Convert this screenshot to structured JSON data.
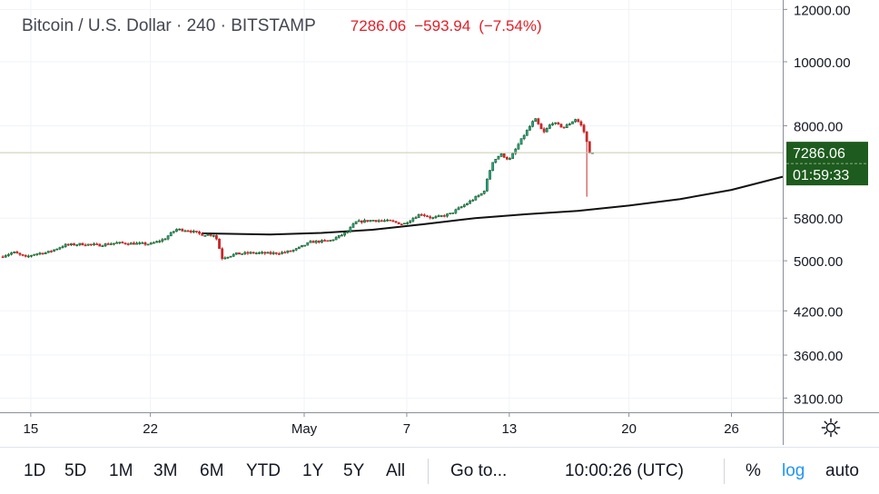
{
  "header": {
    "symbol": "Bitcoin / U.S. Dollar · 240 · BITSTAMP",
    "last": "7286.06",
    "change": "−593.94",
    "change_pct": "(−7.54%)"
  },
  "colors": {
    "up": "#26a69a",
    "up_dark": "#1b5e20",
    "down": "#c62828",
    "ma": "#111111",
    "price_label_bg": "#1e5b1e",
    "grid": "#f0f3fa"
  },
  "price_label": {
    "price": "7286.06",
    "countdown": "01:59:33"
  },
  "toolbar": {
    "ranges": [
      "1D",
      "5D",
      "1M",
      "3M",
      "6M",
      "YTD",
      "1Y",
      "5Y",
      "All"
    ],
    "goto": "Go to...",
    "clock": "10:00:26 (UTC)",
    "percent": "%",
    "log": "log",
    "auto": "auto"
  },
  "chart_data": {
    "type": "candlestick",
    "title": "Bitcoin / U.S. Dollar · 240 · BITSTAMP",
    "interval": "240",
    "scale": "log",
    "grid": true,
    "ylim": [
      2950,
      12400
    ],
    "y_ticks": [
      "12000.00",
      "10000.00",
      "8000.00",
      "5800.00",
      "5000.00",
      "4200.00",
      "3600.00",
      "3100.00"
    ],
    "y_tick_values": [
      12000,
      10000,
      8000,
      5800,
      5000,
      4200,
      3600,
      3100
    ],
    "x_ticks": [
      "15",
      "22",
      "May",
      "7",
      "13",
      "20",
      "26"
    ],
    "x_tick_days": [
      15,
      22,
      31,
      37,
      43,
      50,
      56
    ],
    "x_range_days": [
      13.2,
      59
    ],
    "last_price": 7286.06,
    "price_path": [
      [
        13.2,
        5070
      ],
      [
        14.0,
        5150
      ],
      [
        14.7,
        5060
      ],
      [
        15.2,
        5120
      ],
      [
        16.0,
        5150
      ],
      [
        17.0,
        5280
      ],
      [
        18.0,
        5300
      ],
      [
        19.0,
        5280
      ],
      [
        20.0,
        5320
      ],
      [
        21.0,
        5310
      ],
      [
        22.0,
        5300
      ],
      [
        22.8,
        5390
      ],
      [
        23.5,
        5580
      ],
      [
        24.2,
        5560
      ],
      [
        25.0,
        5480
      ],
      [
        25.8,
        5470
      ],
      [
        26.2,
        5050
      ],
      [
        27.0,
        5120
      ],
      [
        28.0,
        5140
      ],
      [
        29.0,
        5130
      ],
      [
        29.9,
        5150
      ],
      [
        30.5,
        5200
      ],
      [
        31.4,
        5340
      ],
      [
        32.5,
        5360
      ],
      [
        33.5,
        5520
      ],
      [
        34.0,
        5720
      ],
      [
        35.0,
        5760
      ],
      [
        36.0,
        5740
      ],
      [
        36.8,
        5680
      ],
      [
        37.8,
        5890
      ],
      [
        38.5,
        5800
      ],
      [
        39.5,
        5880
      ],
      [
        40.5,
        6100
      ],
      [
        41.5,
        6350
      ],
      [
        42.0,
        7050
      ],
      [
        42.5,
        7250
      ],
      [
        43.0,
        7100
      ],
      [
        43.8,
        7700
      ],
      [
        44.5,
        8200
      ],
      [
        45.0,
        7800
      ],
      [
        45.5,
        8100
      ],
      [
        46.2,
        7950
      ],
      [
        46.9,
        8200
      ],
      [
        47.3,
        7950
      ],
      [
        47.7,
        7300
      ],
      [
        47.9,
        7286
      ]
    ],
    "wick_low": {
      "day": 47.6,
      "low": 6250
    },
    "moving_average": {
      "name": "",
      "points": [
        [
          25.0,
          5500
        ],
        [
          29.0,
          5480
        ],
        [
          32.0,
          5510
        ],
        [
          35.0,
          5570
        ],
        [
          38.0,
          5680
        ],
        [
          41.0,
          5800
        ],
        [
          44.0,
          5880
        ],
        [
          47.0,
          5950
        ],
        [
          50.0,
          6060
        ],
        [
          53.0,
          6200
        ],
        [
          56.0,
          6400
        ],
        [
          59.0,
          6700
        ]
      ]
    }
  }
}
